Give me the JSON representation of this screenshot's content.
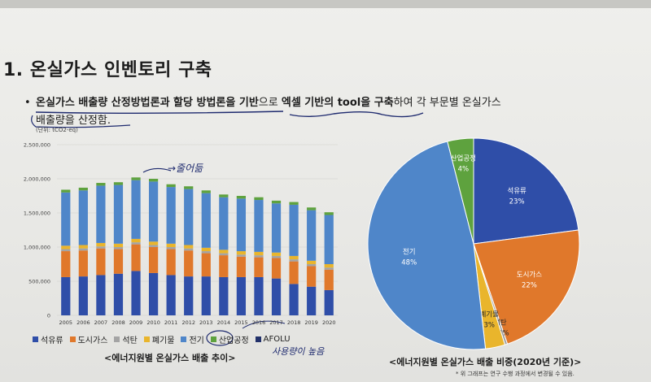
{
  "slide": {
    "heading": "1.  온실가스 인벤토리 구축",
    "bullet": {
      "part1": "온실가스 배출량 산정방법론과 할당 방법론을 기반",
      "part2": "으로 ",
      "part3": "엑셀 기반의 tool을 구축",
      "part4": "하여 각 부문별 온실가스",
      "part5": "배출량을 산정함."
    },
    "handwriting": {
      "decrease": "→줄어듦",
      "electricity_note": "사용량이 높음"
    }
  },
  "chart_bar": {
    "unit_label": "(단위: tCO2-eq)",
    "title": "<에너지원별 온실가스 배출 추이>"
  },
  "chart_pie": {
    "title": "<에너지원별 온실가스 배출 비중(2020년 기준)>",
    "note": "* 위 그래프는 연구 수행 과정에서 변경될 수 있음."
  },
  "colors": {
    "석유류": "#2f4ea8",
    "도시가스": "#e0782b",
    "석탄": "#a4a4a4",
    "폐기물": "#e9b52c",
    "전기": "#4f86c9",
    "산업공정": "#5ea23e",
    "AFOLU": "#22316a"
  },
  "chart_data": [
    {
      "type": "bar",
      "stacked": true,
      "categories": [
        "2005",
        "2006",
        "2007",
        "2008",
        "2009",
        "2010",
        "2011",
        "2012",
        "2013",
        "2014",
        "2015",
        "2016",
        "2017",
        "2018",
        "2019",
        "2020"
      ],
      "ylim": [
        0,
        2500000
      ],
      "yticks": [
        "0",
        "500,000",
        "1,000,000",
        "1,500,000",
        "2,000,000",
        "2,500,000"
      ],
      "series": [
        {
          "name": "석유류",
          "values": [
            560000,
            570000,
            590000,
            610000,
            650000,
            620000,
            590000,
            570000,
            570000,
            560000,
            560000,
            560000,
            540000,
            460000,
            420000,
            370000
          ]
        },
        {
          "name": "도시가스",
          "values": [
            380000,
            380000,
            390000,
            360000,
            390000,
            380000,
            380000,
            380000,
            340000,
            320000,
            300000,
            290000,
            300000,
            330000,
            300000,
            300000
          ]
        },
        {
          "name": "석탄",
          "values": [
            30000,
            30000,
            30000,
            30000,
            30000,
            30000,
            30000,
            30000,
            30000,
            30000,
            30000,
            30000,
            30000,
            30000,
            30000,
            30000
          ]
        },
        {
          "name": "폐기물",
          "values": [
            50000,
            50000,
            50000,
            50000,
            50000,
            50000,
            50000,
            50000,
            50000,
            50000,
            50000,
            50000,
            50000,
            50000,
            50000,
            50000
          ]
        },
        {
          "name": "전기",
          "values": [
            780000,
            800000,
            840000,
            860000,
            860000,
            880000,
            830000,
            820000,
            800000,
            770000,
            770000,
            760000,
            720000,
            750000,
            740000,
            720000
          ]
        },
        {
          "name": "산업공정",
          "values": [
            40000,
            40000,
            40000,
            40000,
            40000,
            40000,
            40000,
            40000,
            40000,
            40000,
            40000,
            40000,
            40000,
            40000,
            40000,
            40000
          ]
        },
        {
          "name": "AFOLU",
          "values": [
            0,
            0,
            0,
            0,
            0,
            0,
            0,
            0,
            0,
            0,
            0,
            0,
            0,
            0,
            0,
            0
          ]
        }
      ],
      "legend": [
        "석유류",
        "도시가스",
        "석탄",
        "폐기물",
        "전기",
        "산업공정",
        "AFOLU"
      ],
      "grid": true
    },
    {
      "type": "pie",
      "year": "2020",
      "slices": [
        {
          "label": "석유류",
          "pct_label": "23%",
          "value": 23
        },
        {
          "label": "도시가스",
          "pct_label": "22%",
          "value": 22
        },
        {
          "label": "석탄",
          "pct_label": "0.4%",
          "value": 0.4
        },
        {
          "label": "폐기물",
          "pct_label": "3%",
          "value": 3
        },
        {
          "label": "전기",
          "pct_label": "48%",
          "value": 48
        },
        {
          "label": "산업공정",
          "pct_label": "4%",
          "value": 4
        }
      ]
    }
  ]
}
